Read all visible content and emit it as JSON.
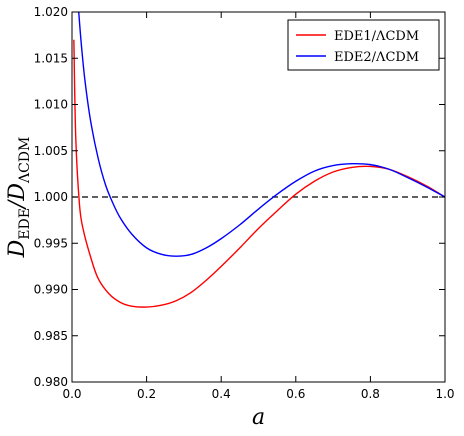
{
  "chart_data": {
    "type": "line",
    "xlabel": "a",
    "ylabel_main": "D",
    "ylabel_sub_num": "EDE",
    "ylabel_sub_den": "ΛCDM",
    "xlim": [
      0.0,
      1.0
    ],
    "ylim": [
      0.98,
      1.02
    ],
    "x_ticks": [
      "0.0",
      "0.2",
      "0.4",
      "0.6",
      "0.8",
      "1.0"
    ],
    "x_tick_values": [
      0.0,
      0.2,
      0.4,
      0.6,
      0.8,
      1.0
    ],
    "y_ticks": [
      "0.980",
      "0.985",
      "0.990",
      "0.995",
      "1.000",
      "1.005",
      "1.010",
      "1.015",
      "1.020"
    ],
    "y_tick_values": [
      0.98,
      0.985,
      0.99,
      0.995,
      1.0,
      1.005,
      1.01,
      1.015,
      1.02
    ],
    "grid": false,
    "legend_position": "top-right",
    "reference_line": {
      "y": 1.0,
      "style": "dashed",
      "color": "#000000"
    },
    "series": [
      {
        "name": "EDE1/ΛCDM",
        "color": "#ff0000",
        "x": [
          0.005,
          0.01,
          0.02,
          0.03,
          0.05,
          0.07,
          0.1,
          0.13,
          0.16,
          0.2,
          0.24,
          0.28,
          0.32,
          0.36,
          0.4,
          0.45,
          0.5,
          0.55,
          0.6,
          0.65,
          0.7,
          0.75,
          0.8,
          0.85,
          0.9,
          0.95,
          1.0
        ],
        "y": [
          1.017,
          1.0065,
          0.9992,
          0.9965,
          0.9935,
          0.9912,
          0.9895,
          0.9886,
          0.9882,
          0.9881,
          0.9883,
          0.9888,
          0.9897,
          0.991,
          0.9925,
          0.9945,
          0.9966,
          0.9985,
          1.0003,
          1.0017,
          1.0027,
          1.0032,
          1.0033,
          1.003,
          1.0022,
          1.0012,
          1.0
        ]
      },
      {
        "name": "EDE2/ΛCDM",
        "color": "#0000ff",
        "x": [
          0.018,
          0.025,
          0.035,
          0.05,
          0.07,
          0.09,
          0.11,
          0.13,
          0.16,
          0.2,
          0.24,
          0.28,
          0.32,
          0.36,
          0.4,
          0.45,
          0.5,
          0.55,
          0.6,
          0.65,
          0.7,
          0.75,
          0.8,
          0.85,
          0.9,
          0.95,
          1.0
        ],
        "y": [
          1.02,
          1.0165,
          1.0125,
          1.0082,
          1.0042,
          1.0013,
          0.9993,
          0.9977,
          0.996,
          0.9945,
          0.9938,
          0.9936,
          0.9938,
          0.9945,
          0.9955,
          0.997,
          0.9987,
          1.0003,
          1.0017,
          1.0028,
          1.0034,
          1.0036,
          1.0035,
          1.003,
          1.0021,
          1.0011,
          1.0
        ]
      }
    ]
  }
}
